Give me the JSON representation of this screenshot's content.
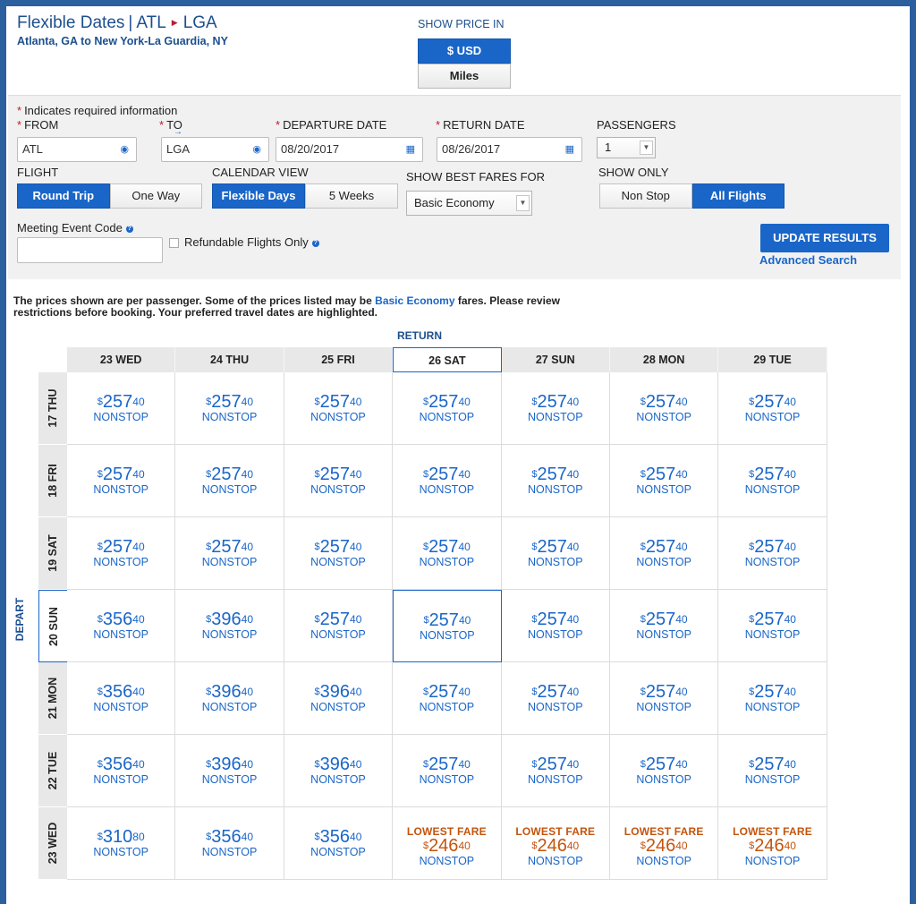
{
  "header": {
    "title_prefix": "Flexible Dates",
    "origin_code": "ATL",
    "destination_code": "LGA",
    "route_description": "Atlanta, GA to New York-La Guardia, NY",
    "show_price_label": "SHOW PRICE IN",
    "price_options": [
      "$ USD",
      "Miles"
    ],
    "price_selected": "$ USD"
  },
  "form": {
    "required_note": "Indicates required information",
    "from_label": "FROM",
    "from_value": "ATL",
    "to_label": "TO",
    "to_value": "LGA",
    "departure_label": "DEPARTURE DATE",
    "departure_value": "08/20/2017",
    "return_label": "RETURN DATE",
    "return_value": "08/26/2017",
    "passengers_label": "PASSENGERS",
    "passengers_value": "1",
    "flight_label": "FLIGHT",
    "flight_options": [
      "Round Trip",
      "One Way"
    ],
    "flight_selected": "Round Trip",
    "calendar_label": "CALENDAR VIEW",
    "calendar_options": [
      "Flexible Days",
      "5 Weeks"
    ],
    "calendar_selected": "Flexible Days",
    "best_fares_label": "SHOW BEST FARES FOR",
    "best_fares_value": "Basic Economy",
    "show_only_label": "SHOW ONLY",
    "show_only_options": [
      "Non Stop",
      "All Flights"
    ],
    "show_only_selected": "All Flights",
    "meeting_code_label": "Meeting Event Code",
    "meeting_code_value": "",
    "refundable_label": "Refundable Flights Only",
    "refundable_checked": false,
    "update_button": "UPDATE RESULTS",
    "advanced_search": "Advanced Search"
  },
  "notice": {
    "part1": "The prices shown are per passenger. Some of the prices listed may be ",
    "link": "Basic Economy",
    "part2": " fares. Please review restrictions before booking. Your preferred travel dates are highlighted."
  },
  "grid": {
    "return_label": "RETURN",
    "depart_label": "DEPART",
    "columns": [
      "23 WED",
      "24 THU",
      "25 FRI",
      "26 SAT",
      "27 SUN",
      "28 MON",
      "29 TUE"
    ],
    "selected_column": 3,
    "selected_row": 3,
    "currency_symbol": "$",
    "nonstop_label": "NONSTOP",
    "lowest_label": "LOWEST FARE",
    "rows": [
      {
        "label": "17 THU",
        "cells": [
          {
            "dollars": "257",
            "cents": "40"
          },
          {
            "dollars": "257",
            "cents": "40"
          },
          {
            "dollars": "257",
            "cents": "40"
          },
          {
            "dollars": "257",
            "cents": "40"
          },
          {
            "dollars": "257",
            "cents": "40"
          },
          {
            "dollars": "257",
            "cents": "40"
          },
          {
            "dollars": "257",
            "cents": "40"
          }
        ]
      },
      {
        "label": "18 FRI",
        "cells": [
          {
            "dollars": "257",
            "cents": "40"
          },
          {
            "dollars": "257",
            "cents": "40"
          },
          {
            "dollars": "257",
            "cents": "40"
          },
          {
            "dollars": "257",
            "cents": "40"
          },
          {
            "dollars": "257",
            "cents": "40"
          },
          {
            "dollars": "257",
            "cents": "40"
          },
          {
            "dollars": "257",
            "cents": "40"
          }
        ]
      },
      {
        "label": "19 SAT",
        "cells": [
          {
            "dollars": "257",
            "cents": "40"
          },
          {
            "dollars": "257",
            "cents": "40"
          },
          {
            "dollars": "257",
            "cents": "40"
          },
          {
            "dollars": "257",
            "cents": "40"
          },
          {
            "dollars": "257",
            "cents": "40"
          },
          {
            "dollars": "257",
            "cents": "40"
          },
          {
            "dollars": "257",
            "cents": "40"
          }
        ]
      },
      {
        "label": "20 SUN",
        "cells": [
          {
            "dollars": "356",
            "cents": "40"
          },
          {
            "dollars": "396",
            "cents": "40"
          },
          {
            "dollars": "257",
            "cents": "40"
          },
          {
            "dollars": "257",
            "cents": "40"
          },
          {
            "dollars": "257",
            "cents": "40"
          },
          {
            "dollars": "257",
            "cents": "40"
          },
          {
            "dollars": "257",
            "cents": "40"
          }
        ]
      },
      {
        "label": "21 MON",
        "cells": [
          {
            "dollars": "356",
            "cents": "40"
          },
          {
            "dollars": "396",
            "cents": "40"
          },
          {
            "dollars": "396",
            "cents": "40"
          },
          {
            "dollars": "257",
            "cents": "40"
          },
          {
            "dollars": "257",
            "cents": "40"
          },
          {
            "dollars": "257",
            "cents": "40"
          },
          {
            "dollars": "257",
            "cents": "40"
          }
        ]
      },
      {
        "label": "22 TUE",
        "cells": [
          {
            "dollars": "356",
            "cents": "40"
          },
          {
            "dollars": "396",
            "cents": "40"
          },
          {
            "dollars": "396",
            "cents": "40"
          },
          {
            "dollars": "257",
            "cents": "40"
          },
          {
            "dollars": "257",
            "cents": "40"
          },
          {
            "dollars": "257",
            "cents": "40"
          },
          {
            "dollars": "257",
            "cents": "40"
          }
        ]
      },
      {
        "label": "23 WED",
        "cells": [
          {
            "dollars": "310",
            "cents": "80"
          },
          {
            "dollars": "356",
            "cents": "40"
          },
          {
            "dollars": "356",
            "cents": "40"
          },
          {
            "dollars": "246",
            "cents": "40",
            "lowest": true
          },
          {
            "dollars": "246",
            "cents": "40",
            "lowest": true
          },
          {
            "dollars": "246",
            "cents": "40",
            "lowest": true
          },
          {
            "dollars": "246",
            "cents": "40",
            "lowest": true
          }
        ]
      }
    ]
  },
  "colors": {
    "brand_blue": "#1a66c8",
    "title_blue": "#1c4f8f",
    "required_red": "#c01933",
    "lowest_orange": "#c4540d"
  }
}
